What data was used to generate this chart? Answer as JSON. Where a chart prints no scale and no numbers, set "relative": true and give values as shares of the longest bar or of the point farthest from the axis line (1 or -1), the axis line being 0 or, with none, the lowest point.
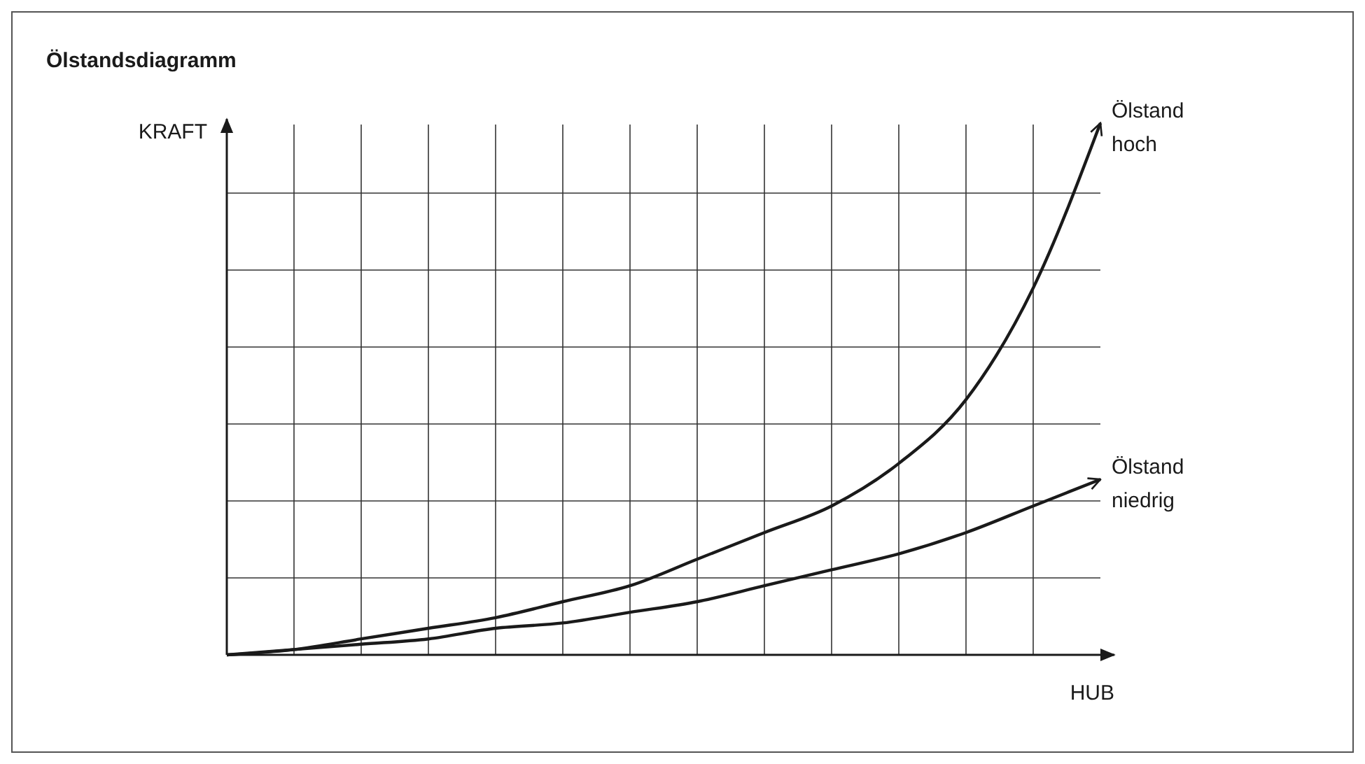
{
  "chart_data": {
    "type": "line",
    "title": "Ölstandsdiagramm",
    "xlabel": "HUB",
    "ylabel": "KRAFT",
    "relative": true,
    "grid": true,
    "legend": false,
    "marker": "none",
    "line_style": "solid",
    "categories": [
      null,
      null,
      null,
      null,
      null,
      null,
      null,
      null,
      null,
      null,
      null,
      null,
      null,
      null
    ],
    "series": [
      {
        "name": "Ölstand hoch",
        "color": "#1a1a1a",
        "values": [
          0,
          0.01,
          0.03,
          0.05,
          0.07,
          0.1,
          0.13,
          0.18,
          0.23,
          0.28,
          0.36,
          0.48,
          0.69,
          1
        ]
      },
      {
        "name": "Ölstand niedrig",
        "color": "#1a1a1a",
        "values": [
          0,
          0.01,
          0.02,
          0.03,
          0.05,
          0.06,
          0.08,
          0.1,
          0.13,
          0.16,
          0.19,
          0.23,
          0.28,
          0.33
        ]
      }
    ]
  }
}
